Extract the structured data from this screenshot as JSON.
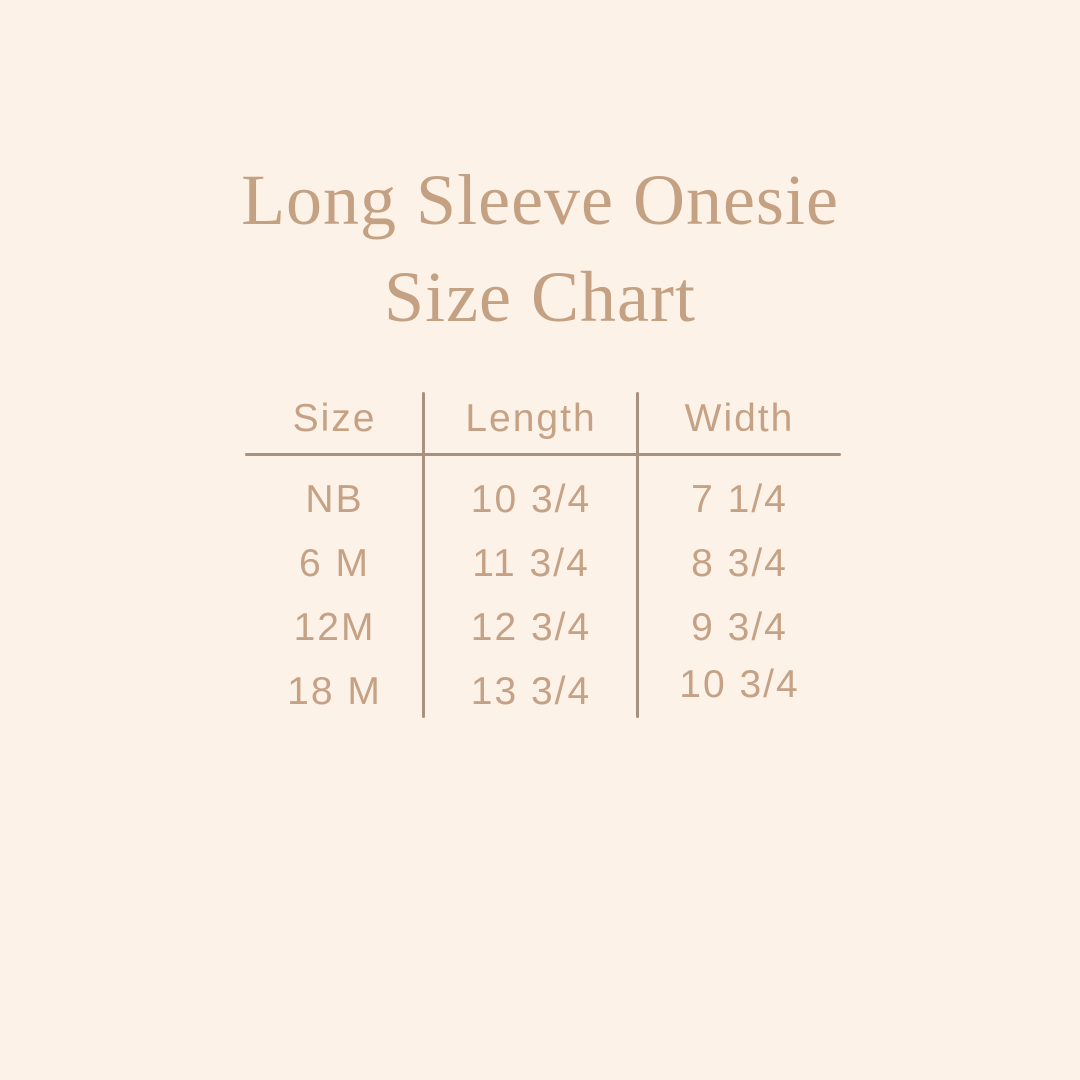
{
  "title": {
    "line1": "Long Sleeve Onesie",
    "line2": "Size Chart"
  },
  "colors": {
    "background": "#fdf2e8",
    "title_text": "#c4a183",
    "table_text": "#c5a285",
    "line": "#a7917f"
  },
  "table": {
    "headers": [
      "Size",
      "Length",
      "Width"
    ],
    "rows": [
      [
        "NB",
        "10 3/4",
        "7 1/4"
      ],
      [
        "6 M",
        "11 3/4",
        "8 3/4"
      ],
      [
        "12M",
        "12 3/4",
        "9 3/4"
      ],
      [
        "18 M",
        "13 3/4",
        "10 3/4"
      ]
    ]
  },
  "chart_data": {
    "type": "table",
    "title": "Long Sleeve Onesie Size Chart",
    "columns": [
      "Size",
      "Length",
      "Width"
    ],
    "rows": [
      [
        "NB",
        "10 3/4",
        "7 1/4"
      ],
      [
        "6 M",
        "11 3/4",
        "8 3/4"
      ],
      [
        "12M",
        "12 3/4",
        "9 3/4"
      ],
      [
        "18 M",
        "13 3/4",
        "10 3/4"
      ]
    ],
    "series": [
      {
        "name": "Length",
        "values": [
          10.75,
          11.75,
          12.75,
          13.75
        ]
      },
      {
        "name": "Width",
        "values": [
          7.25,
          8.75,
          9.75,
          10.75
        ]
      }
    ],
    "categories": [
      "NB",
      "6 M",
      "12M",
      "18 M"
    ]
  }
}
